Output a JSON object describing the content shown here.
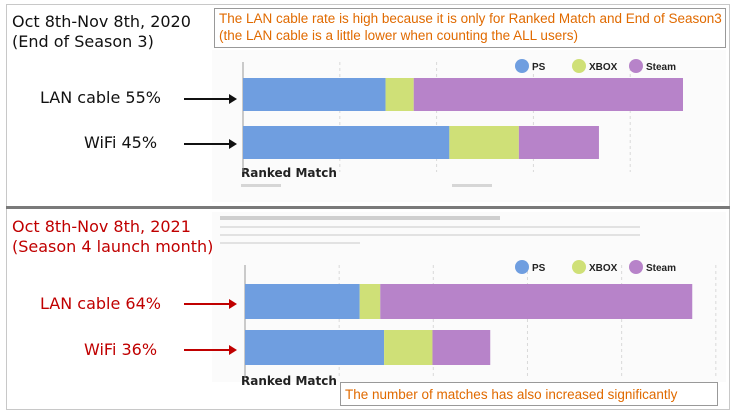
{
  "colors": {
    "ps": "#6f9ee0",
    "xbox": "#cfe077",
    "steam": "#b783c9",
    "accent_red": "#c00000",
    "note_orange": "#e06a00"
  },
  "top": {
    "title_line1": "Oct 8th-Nov 8th, 2020",
    "title_line2": "(End of Season 3)",
    "note_line1": "The LAN cable rate is high because it is only for Ranked Match and End of Season3",
    "note_line2": "(the LAN cable is a little lower when counting the ALL users)",
    "lan_label": "LAN cable 55%",
    "wifi_label": "WiFi  45%",
    "ranked_label": "Ranked Match"
  },
  "bottom": {
    "title_line1": "Oct 8th-Nov 8th, 2021",
    "title_line2": "(Season 4 launch month)",
    "lan_label": "LAN cable 64%",
    "wifi_label": "WiFi  36%",
    "ranked_label": "Ranked Match",
    "note": "The number of matches has also increased significantly"
  },
  "chart_data": [
    {
      "type": "bar",
      "orientation": "horizontal",
      "stacked": true,
      "title": "Oct 8th-Nov 8th, 2020 (End of Season 3)",
      "categories": [
        "LAN cable",
        "WiFi"
      ],
      "category_shares_percent": [
        55,
        45
      ],
      "series": [
        {
          "name": "PS",
          "values": [
            0.324,
            0.469
          ]
        },
        {
          "name": "XBOX",
          "values": [
            0.064,
            0.158
          ]
        },
        {
          "name": "Steam",
          "values": [
            0.612,
            0.182
          ]
        }
      ],
      "xlim": [
        0,
        1
      ],
      "legend": "top-right"
    },
    {
      "type": "bar",
      "orientation": "horizontal",
      "stacked": true,
      "title": "Oct 8th-Nov 8th, 2021 (Season 4 launch month)",
      "categories": [
        "LAN cable",
        "WiFi"
      ],
      "category_shares_percent": [
        64,
        36
      ],
      "series": [
        {
          "name": "PS",
          "values": [
            0.268,
            0.325
          ]
        },
        {
          "name": "XBOX",
          "values": [
            0.048,
            0.113
          ]
        },
        {
          "name": "Steam",
          "values": [
            0.729,
            0.135
          ]
        }
      ],
      "xlim": [
        0,
        1
      ],
      "legend": "top-right"
    }
  ]
}
